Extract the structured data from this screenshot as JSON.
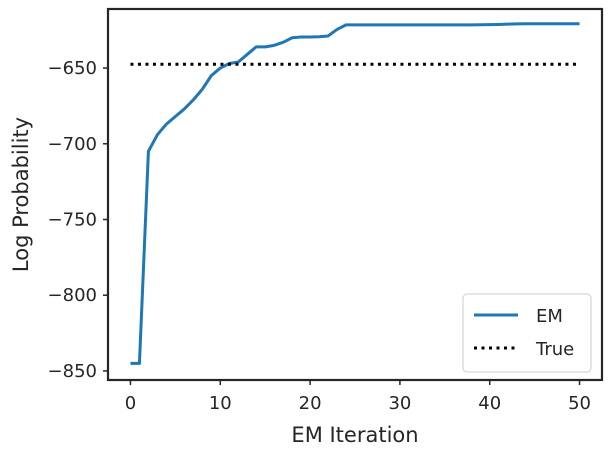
{
  "chart_data": {
    "type": "line",
    "xlabel": "EM Iteration",
    "ylabel": "Log Probability",
    "xlim": [
      -2.5,
      52.5
    ],
    "ylim": [
      -856,
      -611
    ],
    "xticks": [
      0,
      10,
      20,
      30,
      40,
      50
    ],
    "yticks": [
      -850,
      -800,
      -750,
      -700,
      -650
    ],
    "xtick_labels": [
      "0",
      "10",
      "20",
      "30",
      "40",
      "50"
    ],
    "ytick_labels": [
      "−850",
      "−800",
      "−750",
      "−700",
      "−650"
    ],
    "grid": false,
    "legend_position": "bottom-right",
    "series": [
      {
        "name": "EM",
        "style": "solid",
        "color": "#1f77b4",
        "x": [
          0,
          1,
          2,
          3,
          4,
          5,
          6,
          7,
          8,
          9,
          10,
          11,
          12,
          13,
          14,
          15,
          16,
          17,
          18,
          19,
          20,
          21,
          22,
          23,
          24,
          25,
          26,
          27,
          28,
          29,
          30,
          31,
          32,
          33,
          34,
          35,
          36,
          37,
          38,
          39,
          40,
          41,
          42,
          43,
          44,
          45,
          46,
          47,
          48,
          49,
          50
        ],
        "y": [
          -845,
          -845,
          -705,
          -694,
          -687,
          -682,
          -677,
          -671,
          -664,
          -655,
          -650,
          -647,
          -646,
          -641,
          -636,
          -636,
          -635,
          -633,
          -630,
          -629.5,
          -629.5,
          -629.3,
          -628.8,
          -624.5,
          -621.5,
          -621.5,
          -621.5,
          -621.5,
          -621.5,
          -621.5,
          -621.5,
          -621.5,
          -621.5,
          -621.5,
          -621.5,
          -621.5,
          -621.5,
          -621.5,
          -621.5,
          -621.4,
          -621.3,
          -621.2,
          -621,
          -620.8,
          -620.7,
          -620.7,
          -620.7,
          -620.7,
          -620.7,
          -620.7,
          -620.7
        ]
      },
      {
        "name": "True",
        "style": "dotted",
        "color": "#000000",
        "x": [
          0,
          50
        ],
        "y": [
          -647.5,
          -647.5
        ]
      }
    ]
  }
}
